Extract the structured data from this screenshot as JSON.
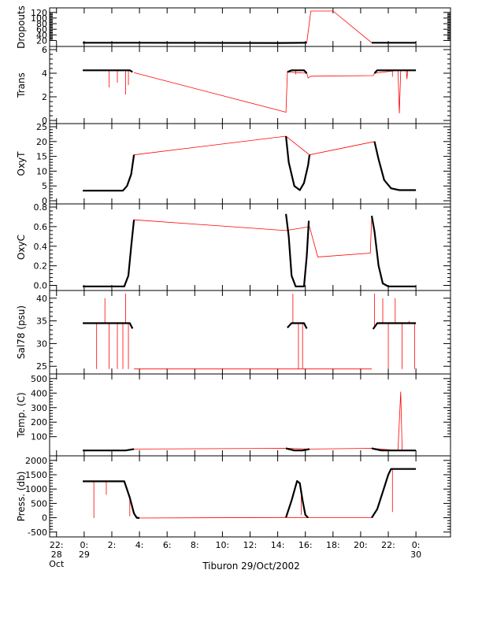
{
  "chart_data": {
    "type": "line",
    "caption": "Tiburon 29/Oct/2002",
    "series_colors": {
      "profile": "#000000",
      "gaps": "#ff0000"
    },
    "x_ticks": [
      {
        "t": -2,
        "lines": [
          "22:",
          "28",
          "Oct"
        ]
      },
      {
        "t": 0,
        "lines": [
          "0:",
          "29"
        ]
      },
      {
        "t": 2,
        "lines": [
          "2:"
        ]
      },
      {
        "t": 4,
        "lines": [
          "4:"
        ]
      },
      {
        "t": 6,
        "lines": [
          "6:"
        ]
      },
      {
        "t": 8,
        "lines": [
          "8:"
        ]
      },
      {
        "t": 10,
        "lines": [
          "10:"
        ]
      },
      {
        "t": 12,
        "lines": [
          "12:"
        ]
      },
      {
        "t": 14,
        "lines": [
          "14:"
        ]
      },
      {
        "t": 16,
        "lines": [
          "16:"
        ]
      },
      {
        "t": 18,
        "lines": [
          "18:"
        ]
      },
      {
        "t": 20,
        "lines": [
          "20:"
        ]
      },
      {
        "t": 22,
        "lines": [
          "22:"
        ]
      },
      {
        "t": 24,
        "lines": [
          "0:",
          "30"
        ]
      }
    ],
    "xlim": [
      -2.5,
      26.5
    ],
    "panels": [
      {
        "key": "dropouts",
        "ylabel": "Dropouts",
        "ylim": [
          10,
          125
        ],
        "yticks": [
          20,
          40,
          60,
          80,
          100,
          120
        ],
        "black": [
          [
            [
              -0.1,
              12
            ],
            [
              3.4,
              12
            ],
            [
              14.1,
              11
            ],
            [
              16.1,
              12
            ]
          ],
          [
            [
              20.8,
              12
            ],
            [
              24.0,
              12
            ]
          ]
        ],
        "red": [
          [
            16.1,
            12
          ],
          [
            16.4,
            125
          ],
          [
            18.0,
            125
          ],
          [
            20.8,
            12
          ]
        ]
      },
      {
        "key": "trans",
        "ylabel": "Trans",
        "ylim": [
          0,
          6
        ],
        "yticks": [
          0,
          2,
          4,
          6
        ],
        "black": [
          [
            [
              -0.1,
              4.25
            ],
            [
              3.3,
              4.25
            ],
            [
              3.5,
              4.1
            ]
          ],
          [
            [
              14.7,
              4.1
            ],
            [
              15.0,
              4.25
            ],
            [
              15.9,
              4.25
            ],
            [
              16.1,
              4.0
            ]
          ],
          [
            [
              21.0,
              4.0
            ],
            [
              21.2,
              4.25
            ],
            [
              24.0,
              4.25
            ]
          ]
        ],
        "red": [
          [
            3.6,
            4.05
          ],
          [
            14.6,
            0.7
          ],
          [
            14.7,
            4.1
          ],
          [
            16.1,
            4.0
          ],
          [
            16.2,
            3.6
          ],
          [
            16.4,
            3.75
          ],
          [
            20.9,
            3.8
          ],
          [
            21.0,
            4.0
          ],
          [
            22.7,
            4.25
          ],
          [
            22.8,
            0.6
          ],
          [
            22.9,
            4.25
          ],
          [
            23.3,
            4.25
          ],
          [
            23.35,
            3.5
          ],
          [
            23.4,
            4.25
          ]
        ],
        "spikes": [
          [
            1.8,
            2.8
          ],
          [
            2.4,
            3.2
          ],
          [
            3.0,
            2.2
          ],
          [
            3.2,
            3.0
          ],
          [
            15.3,
            3.9
          ],
          [
            22.3,
            3.7
          ]
        ]
      },
      {
        "key": "oxyt",
        "ylabel": "OxyT",
        "ylim": [
          0,
          25
        ],
        "yticks": [
          0,
          5,
          10,
          15,
          20,
          25
        ],
        "black": [
          [
            [
              -0.1,
              3.4
            ],
            [
              2.8,
              3.4
            ],
            [
              3.1,
              5
            ],
            [
              3.4,
              9
            ],
            [
              3.6,
              15.5
            ]
          ],
          [
            [
              14.6,
              21.8
            ],
            [
              14.8,
              13
            ],
            [
              15.2,
              5
            ],
            [
              15.6,
              3.6
            ],
            [
              15.9,
              6
            ],
            [
              16.2,
              12
            ],
            [
              16.3,
              15.5
            ]
          ],
          [
            [
              21.0,
              20
            ],
            [
              21.3,
              14
            ],
            [
              21.7,
              7
            ],
            [
              22.2,
              4.2
            ],
            [
              22.8,
              3.6
            ],
            [
              24.0,
              3.6
            ]
          ]
        ],
        "red": [
          [
            3.6,
            15.5
          ],
          [
            14.6,
            21.8
          ],
          [
            16.3,
            15.5
          ],
          [
            21.0,
            20.0
          ]
        ]
      },
      {
        "key": "oxyc",
        "ylabel": "OxyC",
        "ylim": [
          -0.02,
          0.8
        ],
        "yticks": [
          0.0,
          0.2,
          0.4,
          0.6,
          0.8
        ],
        "black": [
          [
            [
              -0.1,
              -0.01
            ],
            [
              2.9,
              -0.01
            ],
            [
              3.2,
              0.1
            ],
            [
              3.4,
              0.4
            ],
            [
              3.6,
              0.67
            ]
          ],
          [
            [
              14.6,
              0.73
            ],
            [
              14.8,
              0.5
            ],
            [
              15.0,
              0.1
            ],
            [
              15.3,
              -0.01
            ],
            [
              15.9,
              -0.01
            ],
            [
              16.1,
              0.3
            ],
            [
              16.25,
              0.66
            ]
          ],
          [
            [
              20.8,
              0.71
            ],
            [
              21.0,
              0.55
            ],
            [
              21.3,
              0.2
            ],
            [
              21.6,
              0.02
            ],
            [
              22.0,
              -0.01
            ],
            [
              24.0,
              -0.01
            ]
          ]
        ],
        "red": [
          [
            3.6,
            0.67
          ],
          [
            14.6,
            0.56
          ],
          [
            16.3,
            0.6
          ],
          [
            16.9,
            0.29
          ],
          [
            20.7,
            0.33
          ],
          [
            20.8,
            0.71
          ]
        ]
      },
      {
        "key": "sal",
        "ylabel": "Sal78 (psu)",
        "ylim": [
          24,
          41
        ],
        "yticks": [
          25,
          30,
          35,
          40
        ],
        "black": [
          [
            [
              -0.1,
              34.5
            ],
            [
              3.3,
              34.5
            ],
            [
              3.5,
              33.3
            ]
          ],
          [
            [
              14.7,
              33.5
            ],
            [
              15.0,
              34.5
            ],
            [
              15.9,
              34.5
            ],
            [
              16.1,
              33.3
            ]
          ],
          [
            [
              20.9,
              33.2
            ],
            [
              21.2,
              34.5
            ],
            [
              24.0,
              34.5
            ]
          ]
        ],
        "red": [
          [
            3.6,
            24.4
          ],
          [
            14.6,
            24.4
          ],
          [
            16.2,
            24.4
          ],
          [
            20.8,
            24.4
          ]
        ],
        "spikes": [
          [
            0.9,
            24.4
          ],
          [
            1.5,
            40
          ],
          [
            1.8,
            24.4
          ],
          [
            2.4,
            24.4
          ],
          [
            2.8,
            24.4
          ],
          [
            3.0,
            41
          ],
          [
            3.2,
            24.4
          ],
          [
            15.1,
            41
          ],
          [
            15.5,
            24.4
          ],
          [
            15.8,
            24.4
          ],
          [
            21.0,
            41
          ],
          [
            21.6,
            40
          ],
          [
            22.0,
            24.4
          ],
          [
            22.5,
            40
          ],
          [
            23.0,
            24.4
          ],
          [
            23.5,
            35
          ],
          [
            23.9,
            24.4
          ]
        ]
      },
      {
        "key": "temp",
        "ylabel": "Temp. (C)",
        "ylim": [
          -10,
          510
        ],
        "yticks": [
          100,
          200,
          300,
          400,
          500
        ],
        "black": [
          [
            [
              -0.1,
              5
            ],
            [
              3.0,
              5
            ],
            [
              3.6,
              15
            ]
          ],
          [
            [
              14.6,
              20
            ],
            [
              15.2,
              5
            ],
            [
              15.8,
              5
            ],
            [
              16.3,
              15
            ]
          ],
          [
            [
              20.8,
              20
            ],
            [
              21.5,
              5
            ],
            [
              24.0,
              5
            ]
          ]
        ],
        "red": [
          [
            3.6,
            15
          ],
          [
            14.6,
            20
          ],
          [
            16.3,
            15
          ],
          [
            20.8,
            20
          ],
          [
            22.7,
            5
          ],
          [
            22.9,
            410
          ],
          [
            23.0,
            5
          ]
        ]
      },
      {
        "key": "press",
        "ylabel": "Press. (db)",
        "ylim": [
          -560,
          2050
        ],
        "yticks": [
          -500,
          0,
          500,
          1000,
          1500,
          2000
        ],
        "black": [
          [
            [
              -0.1,
              1270
            ],
            [
              2.9,
              1270
            ],
            [
              3.3,
              700
            ],
            [
              3.6,
              150
            ],
            [
              3.8,
              0
            ],
            [
              4.0,
              -10
            ]
          ],
          [
            [
              14.6,
              10
            ],
            [
              15.0,
              600
            ],
            [
              15.4,
              1280
            ],
            [
              15.6,
              1200
            ],
            [
              15.8,
              600
            ],
            [
              16.0,
              100
            ],
            [
              16.2,
              0
            ]
          ],
          [
            [
              20.8,
              0
            ],
            [
              21.2,
              300
            ],
            [
              21.6,
              900
            ],
            [
              22.0,
              1500
            ],
            [
              22.2,
              1700
            ],
            [
              24.0,
              1700
            ]
          ]
        ],
        "red": [
          [
            4.0,
            -10
          ],
          [
            14.6,
            10
          ],
          [
            16.2,
            0
          ],
          [
            20.8,
            0
          ]
        ],
        "spikes": [
          [
            0.7,
            -10
          ],
          [
            1.1,
            1270
          ],
          [
            1.6,
            800
          ],
          [
            3.3,
            50
          ],
          [
            15.7,
            100
          ],
          [
            21.4,
            600
          ],
          [
            22.3,
            200
          ],
          [
            23.8,
            1700
          ]
        ]
      }
    ]
  }
}
